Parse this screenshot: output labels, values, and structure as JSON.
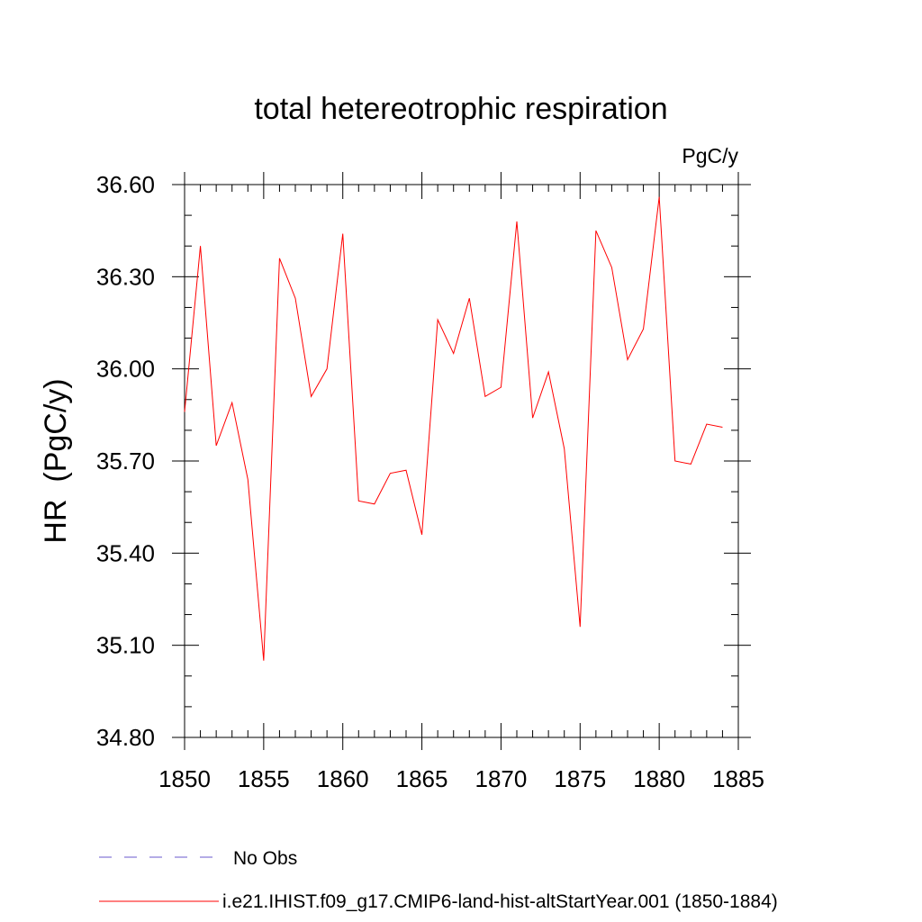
{
  "chart_data": {
    "type": "line",
    "title": "total hetereotrophic respiration",
    "units_label": "PgC/y",
    "ylabel": "HR  (PgC/y)",
    "xlabel": "",
    "xlim": [
      1850,
      1885
    ],
    "ylim": [
      34.8,
      36.6
    ],
    "x_ticks": [
      1850,
      1855,
      1860,
      1865,
      1870,
      1875,
      1880,
      1885
    ],
    "x_tick_labels": [
      "1850",
      "1855",
      "1860",
      "1865",
      "1870",
      "1875",
      "1880",
      "1885"
    ],
    "y_ticks": [
      34.8,
      35.1,
      35.4,
      35.7,
      36.0,
      36.3,
      36.6
    ],
    "y_tick_labels": [
      "34.80",
      "35.10",
      "35.40",
      "35.70",
      "36.00",
      "36.30",
      "36.60"
    ],
    "grid": false,
    "legend_position": "bottom-left",
    "x": [
      1850,
      1851,
      1852,
      1853,
      1854,
      1855,
      1856,
      1857,
      1858,
      1859,
      1860,
      1861,
      1862,
      1863,
      1864,
      1865,
      1866,
      1867,
      1868,
      1869,
      1870,
      1871,
      1872,
      1873,
      1874,
      1875,
      1876,
      1877,
      1878,
      1879,
      1880,
      1881,
      1882,
      1883,
      1884
    ],
    "series": [
      {
        "name": "i.e21.IHIST.f09_g17.CMIP6-land-hist-altStartYear.001 (1850-1884)",
        "color": "#ff0000",
        "style": "solid",
        "values": [
          35.86,
          36.4,
          35.75,
          35.89,
          35.64,
          35.05,
          36.36,
          36.23,
          35.91,
          36.0,
          36.44,
          35.57,
          35.56,
          35.66,
          35.67,
          35.46,
          36.16,
          36.05,
          36.23,
          35.91,
          35.94,
          36.48,
          35.84,
          35.99,
          35.74,
          35.16,
          36.45,
          36.33,
          36.03,
          36.13,
          36.56,
          35.7,
          35.69,
          35.82,
          35.81
        ]
      }
    ],
    "legend": [
      {
        "label": "No Obs",
        "color": "#6a5acd",
        "style": "dashed"
      },
      {
        "label": "i.e21.IHIST.f09_g17.CMIP6-land-hist-altStartYear.001 (1850-1884)",
        "color": "#ff0000",
        "style": "solid"
      }
    ]
  }
}
